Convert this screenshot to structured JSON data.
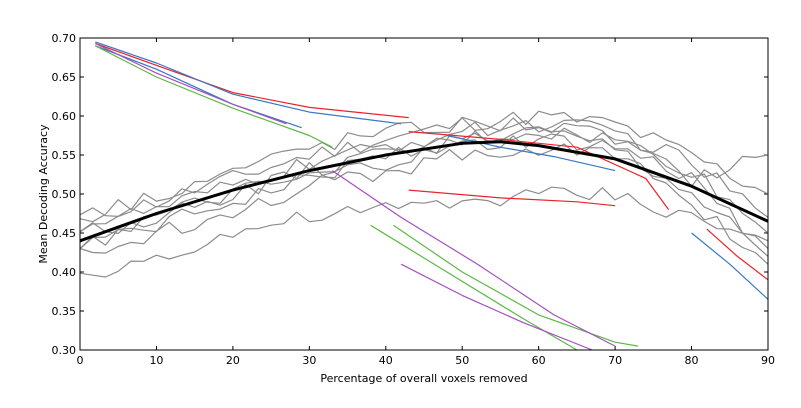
{
  "chart_data": {
    "type": "line",
    "title": "",
    "xlabel": "Percentage of overall voxels removed",
    "ylabel": "Mean Decoding Accuracy",
    "xlim": [
      0,
      90
    ],
    "ylim": [
      0.3,
      0.7
    ],
    "xticks": [
      "0",
      "10",
      "20",
      "30",
      "40",
      "50",
      "60",
      "70",
      "80",
      "90"
    ],
    "yticks": [
      "0.30",
      "0.35",
      "0.40",
      "0.45",
      "0.50",
      "0.55",
      "0.60",
      "0.65",
      "0.70"
    ],
    "grid": false,
    "legend": "none",
    "colors": {
      "gray": "#8c8c8c",
      "mean": "#000000",
      "red": "#e8242c",
      "blue": "#3a78c2",
      "green": "#5cb844",
      "purple": "#a64fc0"
    },
    "series": [
      {
        "color": "gray",
        "x": [
          0,
          10,
          20,
          30,
          40,
          50,
          60,
          70,
          80,
          90
        ],
        "y": [
          0.47,
          0.49,
          0.52,
          0.55,
          0.57,
          0.59,
          0.6,
          0.59,
          0.55,
          0.5
        ]
      },
      {
        "color": "gray",
        "x": [
          0,
          10,
          20,
          30,
          40,
          50,
          60,
          70,
          80,
          90
        ],
        "y": [
          0.46,
          0.48,
          0.51,
          0.54,
          0.56,
          0.58,
          0.59,
          0.58,
          0.54,
          0.47
        ]
      },
      {
        "color": "gray",
        "x": [
          0,
          10,
          20,
          30,
          40,
          50,
          60,
          70,
          80,
          90
        ],
        "y": [
          0.45,
          0.47,
          0.5,
          0.53,
          0.55,
          0.57,
          0.58,
          0.57,
          0.53,
          0.45
        ]
      },
      {
        "color": "gray",
        "x": [
          0,
          10,
          20,
          30,
          40,
          50,
          60,
          70,
          80,
          90
        ],
        "y": [
          0.44,
          0.47,
          0.5,
          0.52,
          0.54,
          0.56,
          0.57,
          0.56,
          0.52,
          0.43
        ]
      },
      {
        "color": "gray",
        "x": [
          0,
          10,
          20,
          30,
          40,
          50,
          60,
          70,
          80,
          90
        ],
        "y": [
          0.43,
          0.46,
          0.49,
          0.52,
          0.55,
          0.57,
          0.58,
          0.56,
          0.5,
          0.42
        ]
      },
      {
        "color": "gray",
        "x": [
          0,
          10,
          20,
          30,
          40,
          50,
          60,
          70,
          80,
          90
        ],
        "y": [
          0.42,
          0.45,
          0.48,
          0.51,
          0.53,
          0.55,
          0.56,
          0.55,
          0.49,
          0.41
        ]
      },
      {
        "color": "gray",
        "x": [
          0,
          10,
          20,
          30,
          40,
          50,
          60,
          70,
          80,
          90
        ],
        "y": [
          0.47,
          0.5,
          0.53,
          0.56,
          0.58,
          0.59,
          0.59,
          0.57,
          0.52,
          0.55
        ]
      },
      {
        "color": "gray",
        "x": [
          0,
          10,
          20,
          30,
          40,
          50,
          60,
          70,
          80,
          90
        ],
        "y": [
          0.39,
          0.42,
          0.45,
          0.47,
          0.48,
          0.49,
          0.5,
          0.5,
          0.47,
          0.44
        ]
      },
      {
        "color": "mean",
        "x": [
          0,
          10,
          20,
          30,
          40,
          50,
          55,
          60,
          70,
          80,
          90
        ],
        "y": [
          0.44,
          0.475,
          0.505,
          0.53,
          0.55,
          0.565,
          0.567,
          0.562,
          0.545,
          0.51,
          0.465
        ]
      },
      {
        "color": "red",
        "x": [
          2,
          10,
          20,
          30,
          43
        ],
        "y": [
          0.693,
          0.665,
          0.63,
          0.611,
          0.598
        ]
      },
      {
        "color": "red",
        "x": [
          43,
          55,
          65,
          70
        ],
        "y": [
          0.505,
          0.495,
          0.49,
          0.485
        ]
      },
      {
        "color": "red",
        "x": [
          43,
          55,
          65,
          74,
          77
        ],
        "y": [
          0.58,
          0.57,
          0.56,
          0.52,
          0.48
        ]
      },
      {
        "color": "red",
        "x": [
          82,
          86,
          90
        ],
        "y": [
          0.455,
          0.42,
          0.39
        ]
      },
      {
        "color": "blue",
        "x": [
          2,
          10,
          20,
          30,
          42
        ],
        "y": [
          0.695,
          0.668,
          0.628,
          0.605,
          0.59
        ]
      },
      {
        "color": "blue",
        "x": [
          2,
          10,
          20,
          29
        ],
        "y": [
          0.69,
          0.66,
          0.615,
          0.585
        ]
      },
      {
        "color": "blue",
        "x": [
          48,
          55,
          62,
          70
        ],
        "y": [
          0.575,
          0.56,
          0.548,
          0.53
        ]
      },
      {
        "color": "blue",
        "x": [
          80,
          85,
          90
        ],
        "y": [
          0.45,
          0.41,
          0.365
        ]
      },
      {
        "color": "green",
        "x": [
          2,
          10,
          20,
          30,
          33
        ],
        "y": [
          0.69,
          0.65,
          0.61,
          0.575,
          0.56
        ]
      },
      {
        "color": "green",
        "x": [
          41,
          50,
          60,
          70,
          73
        ],
        "y": [
          0.46,
          0.4,
          0.345,
          0.31,
          0.305
        ]
      },
      {
        "color": "green",
        "x": [
          38,
          48,
          58,
          65
        ],
        "y": [
          0.46,
          0.4,
          0.34,
          0.3
        ]
      },
      {
        "color": "purple",
        "x": [
          2,
          10,
          20,
          27
        ],
        "y": [
          0.693,
          0.655,
          0.615,
          0.59
        ]
      },
      {
        "color": "purple",
        "x": [
          33,
          42,
          52,
          62,
          70
        ],
        "y": [
          0.53,
          0.47,
          0.41,
          0.345,
          0.305
        ]
      },
      {
        "color": "purple",
        "x": [
          42,
          50,
          58,
          67
        ],
        "y": [
          0.41,
          0.37,
          0.335,
          0.3
        ]
      }
    ]
  }
}
